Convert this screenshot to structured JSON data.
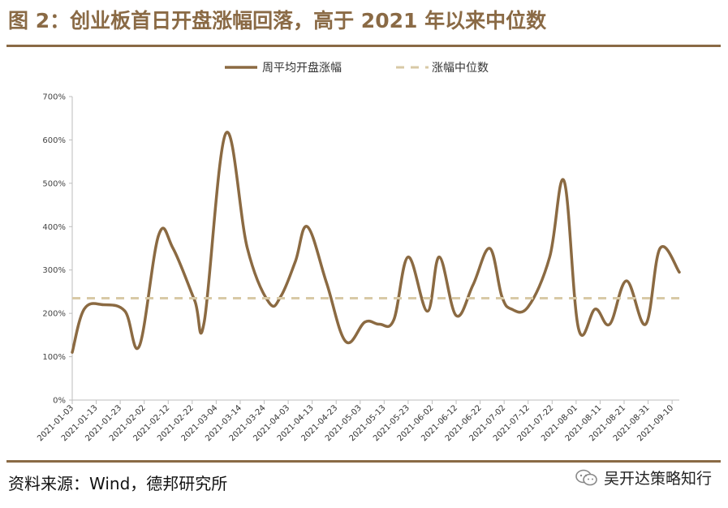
{
  "title": "图 2：创业板首日开盘涨幅回落，高于 2021 年以来中位数",
  "source": "资料来源：Wind，德邦研究所",
  "watermark": "吴开达策略知行",
  "colors": {
    "series": "#8b6a42",
    "median": "#d8c9a6",
    "accent": "#8a6a45"
  },
  "chart_data": {
    "type": "line",
    "title": "",
    "xlabel": "",
    "ylabel": "",
    "ylim": [
      0,
      700
    ],
    "yticks": [
      0,
      100,
      200,
      300,
      400,
      500,
      600,
      700
    ],
    "ytick_labels": [
      "0%",
      "100%",
      "200%",
      "300%",
      "400%",
      "500%",
      "600%",
      "700%"
    ],
    "xlim": [
      "2021-01-03",
      "2021-09-13"
    ],
    "xtick_labels": [
      "2021-01-03",
      "2021-01-13",
      "2021-01-23",
      "2021-02-02",
      "2021-02-12",
      "2021-02-22",
      "2021-03-04",
      "2021-03-14",
      "2021-03-24",
      "2021-04-03",
      "2021-04-13",
      "2021-04-23",
      "2021-05-03",
      "2021-05-13",
      "2021-05-23",
      "2021-06-02",
      "2021-06-12",
      "2021-06-22",
      "2021-07-02",
      "2021-07-12",
      "2021-07-22",
      "2021-08-01",
      "2021-08-11",
      "2021-08-21",
      "2021-08-31",
      "2021-09-10"
    ],
    "legend": {
      "placement": "top-center",
      "entries": [
        "周平均开盘涨幅",
        "涨幅中位数"
      ]
    },
    "series": [
      {
        "name": "周平均开盘涨幅",
        "style": "solid",
        "points": [
          [
            "2021-01-03",
            110
          ],
          [
            "2021-01-08",
            210
          ],
          [
            "2021-01-16",
            220
          ],
          [
            "2021-01-25",
            205
          ],
          [
            "2021-01-31",
            125
          ],
          [
            "2021-02-08",
            380
          ],
          [
            "2021-02-14",
            350
          ],
          [
            "2021-02-23",
            230
          ],
          [
            "2021-02-27",
            180
          ],
          [
            "2021-03-08",
            615
          ],
          [
            "2021-03-17",
            350
          ],
          [
            "2021-03-26",
            225
          ],
          [
            "2021-03-31",
            240
          ],
          [
            "2021-04-06",
            320
          ],
          [
            "2021-04-11",
            400
          ],
          [
            "2021-04-19",
            270
          ],
          [
            "2021-04-27",
            135
          ],
          [
            "2021-05-05",
            180
          ],
          [
            "2021-05-11",
            175
          ],
          [
            "2021-05-17",
            185
          ],
          [
            "2021-05-23",
            330
          ],
          [
            "2021-05-31",
            205
          ],
          [
            "2021-06-05",
            330
          ],
          [
            "2021-06-12",
            195
          ],
          [
            "2021-06-19",
            265
          ],
          [
            "2021-06-26",
            350
          ],
          [
            "2021-07-01",
            240
          ],
          [
            "2021-07-05",
            210
          ],
          [
            "2021-07-12",
            215
          ],
          [
            "2021-07-21",
            330
          ],
          [
            "2021-07-27",
            505
          ],
          [
            "2021-08-02",
            165
          ],
          [
            "2021-08-09",
            210
          ],
          [
            "2021-08-15",
            175
          ],
          [
            "2021-08-22",
            275
          ],
          [
            "2021-08-30",
            175
          ],
          [
            "2021-09-05",
            350
          ],
          [
            "2021-09-13",
            295
          ]
        ]
      },
      {
        "name": "涨幅中位数",
        "style": "dashed",
        "points": [
          [
            "2021-01-03",
            235
          ],
          [
            "2021-09-13",
            235
          ]
        ]
      }
    ]
  }
}
